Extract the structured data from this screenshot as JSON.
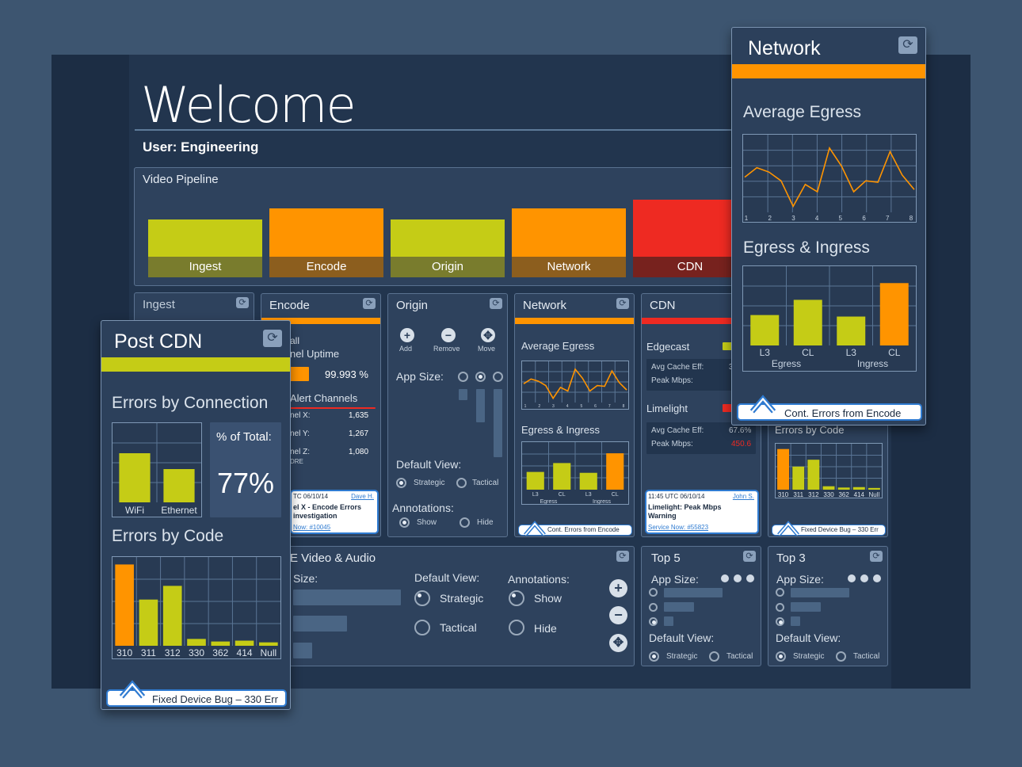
{
  "header": {
    "title": "Welcome",
    "user": "User: Engineering"
  },
  "pipeline": {
    "title": "Video Pipeline",
    "stages": [
      {
        "label": "Ingest",
        "status": "yellow",
        "level": 0.65
      },
      {
        "label": "Encode",
        "status": "orange",
        "level": 0.85
      },
      {
        "label": "Origin",
        "status": "yellow",
        "level": 0.65
      },
      {
        "label": "Network",
        "status": "orange",
        "level": 0.85
      },
      {
        "label": "CDN",
        "status": "red",
        "level": 1.0
      }
    ]
  },
  "colors": {
    "yellow": "#c5cc16",
    "orange": "#ff9400",
    "red": "#ee2a22",
    "panel": "#2e425d"
  },
  "ingest": {
    "title": "Ingest"
  },
  "encode": {
    "title": "Encode",
    "overall": "all",
    "uptime_label": "nel Uptime",
    "uptime": "99.993 %",
    "alert_label": "Alert Channels",
    "channels": [
      {
        "name": "nel X:",
        "val": "1,635"
      },
      {
        "name": "nel Y:",
        "val": "1,267"
      },
      {
        "name": "nel Z:",
        "val": "1,080"
      }
    ],
    "more": "DRE",
    "note": {
      "ts": "TC 06/10/14",
      "user": "Dave H.",
      "line1": "el X - Encode Errors",
      "line2": "investigation",
      "link": "Now: #10045"
    }
  },
  "origin": {
    "title": "Origin",
    "add": "Add",
    "remove": "Remove",
    "move": "Move",
    "app_size": "App Size:",
    "default_view": "Default View:",
    "strategic": "Strategic",
    "tactical": "Tactical",
    "annotations": "Annotations:",
    "show": "Show",
    "hide": "Hide"
  },
  "network_small": {
    "title": "Network",
    "avg_egress": "Average Egress",
    "egress_ingress": "Egress & Ingress",
    "x_ticks": [
      "1",
      "2",
      "3",
      "4",
      "5",
      "6",
      "7",
      "8"
    ],
    "bars": [
      {
        "label": "L3",
        "color": "yellow"
      },
      {
        "label": "CL",
        "color": "yellow"
      },
      {
        "label": "L3",
        "color": "yellow"
      },
      {
        "label": "CL",
        "color": "orange"
      }
    ],
    "groups": [
      "Egress",
      "Ingress"
    ],
    "callout": "Cont. Errors from Encode"
  },
  "cdn": {
    "title": "CDN",
    "edgecast": "Edgecast",
    "cache_label": "Avg Cache Eff:",
    "cache_edge": "3",
    "peak_label": "Peak Mbps:",
    "limelight": "Limelight",
    "cache_lime": "67.6%",
    "peak_lime": "450.6",
    "note": {
      "ts": "11:45 UTC 06/10/14",
      "user": "John S.",
      "line1": "Limelight: Peak Mbps",
      "line2": "Warning",
      "link": "Service Now: #55823"
    }
  },
  "postcdn_small": {
    "errors_by_code": "Errors by Code",
    "codes": [
      "310",
      "311",
      "312",
      "330",
      "362",
      "414",
      "Null"
    ],
    "callout": "Fixed Device Bug – 330 Err"
  },
  "video_audio": {
    "title": "E Video & Audio",
    "size": "Size:",
    "default_view": "Default View:",
    "strategic": "Strategic",
    "tactical": "Tactical",
    "annotations": "Annotations:",
    "show": "Show",
    "hide": "Hide"
  },
  "top5": {
    "title": "Top 5",
    "app_size": "App Size:",
    "default_view": "Default View:",
    "strategic": "Strategic",
    "tactical": "Tactical"
  },
  "top3": {
    "title": "Top 3",
    "app_size": "App Size:",
    "default_view": "Default View:",
    "strategic": "Strategic",
    "tactical": "Tactical"
  },
  "postcdn": {
    "title": "Post CDN",
    "errors_by_connection": "Errors by Connection",
    "pct_label": "% of Total:",
    "pct": "77%",
    "conn_bars": [
      {
        "label": "WiFi",
        "value": 0.62
      },
      {
        "label": "Ethernet",
        "value": 0.42
      }
    ],
    "errors_by_code": "Errors by Code",
    "callout": "Fixed Device Bug – 330 Err"
  },
  "network_big": {
    "title": "Network",
    "avg_egress": "Average Egress",
    "egress_ingress": "Egress & Ingress",
    "callout": "Cont. Errors from Encode"
  },
  "chart_data": [
    {
      "type": "line",
      "title": "Average Egress",
      "x": [
        1,
        1.5,
        2,
        2.5,
        3,
        3.5,
        4,
        4.5,
        5,
        5.5,
        6,
        6.5,
        7,
        7.5,
        8
      ],
      "y": [
        45,
        58,
        52,
        40,
        5,
        35,
        25,
        85,
        60,
        25,
        40,
        38,
        80,
        48,
        28
      ],
      "ylim": [
        0,
        100
      ]
    },
    {
      "type": "bar",
      "title": "Egress & Ingress",
      "categories": [
        "L3",
        "CL",
        "L3",
        "CL"
      ],
      "groups": [
        "Egress",
        "Ingress"
      ],
      "values": [
        40,
        60,
        38,
        82
      ],
      "ylim": [
        0,
        100
      ]
    },
    {
      "type": "bar",
      "title": "Errors by Connection",
      "categories": [
        "WiFi",
        "Ethernet"
      ],
      "values": [
        62,
        42
      ],
      "ylim": [
        0,
        100
      ]
    },
    {
      "type": "bar",
      "title": "Errors by Code",
      "categories": [
        "310",
        "311",
        "312",
        "330",
        "362",
        "414",
        "Null"
      ],
      "values": [
        95,
        54,
        70,
        8,
        5,
        6,
        4
      ],
      "ylim": [
        0,
        100
      ]
    }
  ]
}
